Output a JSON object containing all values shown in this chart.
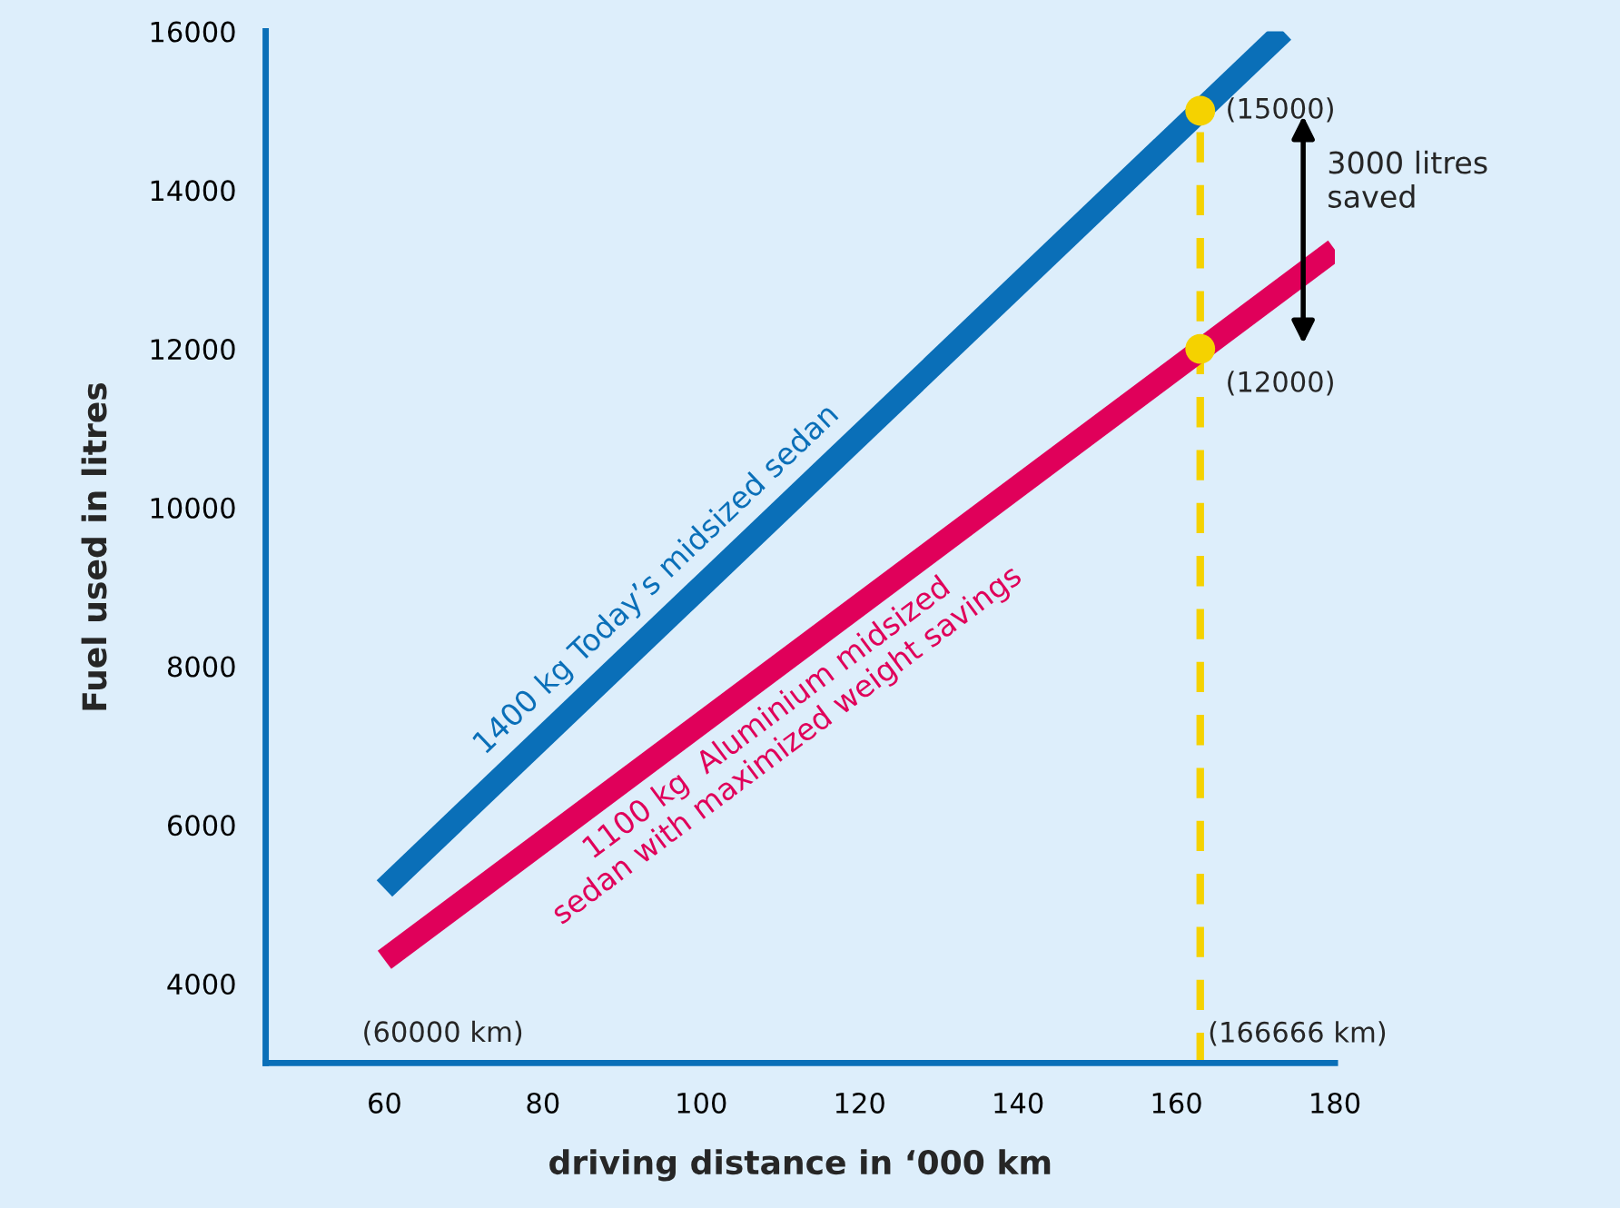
{
  "chart_data": {
    "type": "line",
    "xlabel": "driving distance in ‘000 km",
    "ylabel": "Fuel used in litres",
    "xlim": [
      45,
      180
    ],
    "xticks": [
      60,
      80,
      100,
      120,
      140,
      160,
      180
    ],
    "ylim": [
      3000,
      16000
    ],
    "yticks": [
      4000,
      6000,
      8000,
      10000,
      12000,
      14000,
      16000
    ],
    "grid": false,
    "legend": false,
    "series": [
      {
        "name": "1400 kg Today’s midsized sedan",
        "color": "#0a6fb8",
        "x": [
          60,
          173.5
        ],
        "values": [
          5200,
          16000
        ]
      },
      {
        "name": "1100 kg  Aluminium midsized\nsedan with maximized weight savings",
        "color": "#e0005a",
        "x": [
          60,
          180
        ],
        "values": [
          4300,
          13250
        ]
      },
      {
        "type": "scatter",
        "color": "#f5d200",
        "x": [
          163,
          163
        ],
        "values": [
          15000,
          12000
        ],
        "marker": "circle",
        "value_labels": [
          "(15000)",
          "(12000)"
        ]
      }
    ],
    "ref_lines": [
      {
        "axis": "x",
        "value": 163,
        "color": "#f5d200",
        "line_style": "dashed",
        "label": "(166666 km)"
      }
    ],
    "annotations": [
      "(60000 km)",
      "3000 litres\nsaved"
    ]
  }
}
